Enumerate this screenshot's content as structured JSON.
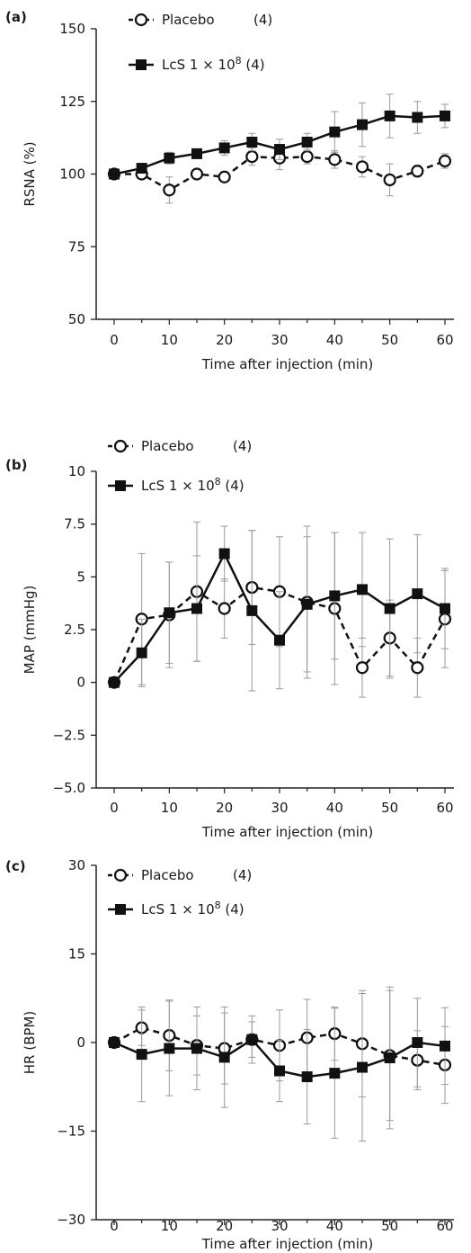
{
  "chart_data": [
    {
      "type": "line",
      "panel_label": "(a)",
      "xlabel": "Time after injection (min)",
      "ylabel": "RSNA (%)",
      "xlim": [
        0,
        60
      ],
      "ylim": [
        50,
        150
      ],
      "xticks": [
        "0",
        "10",
        "20",
        "30",
        "40",
        "50",
        "60"
      ],
      "yticks": [
        "50",
        "75",
        "100",
        "125",
        "150"
      ],
      "ytick_values": [
        50,
        75,
        100,
        125,
        150
      ],
      "legend": [
        {
          "marker": "open-circle",
          "line": "dashed",
          "label": "Placebo",
          "n": "(4)"
        },
        {
          "marker": "filled-square",
          "line": "solid",
          "label": "LcS 1 × 10",
          "sup": "8",
          "n": "(4)"
        }
      ],
      "series": [
        {
          "name": "Placebo",
          "marker": "open-circle",
          "line": "dashed",
          "x": [
            0,
            5,
            10,
            15,
            20,
            25,
            30,
            35,
            40,
            45,
            50,
            55,
            60
          ],
          "values": [
            100,
            100,
            94.5,
            100,
            99,
            106,
            105.5,
            106,
            105,
            102.5,
            98,
            101,
            104.5
          ],
          "errors": [
            1,
            1,
            4.5,
            1.5,
            1.5,
            3,
            4,
            2.5,
            3,
            3.5,
            5.5,
            2,
            2.5
          ]
        },
        {
          "name": "LcS 1 × 10^8",
          "marker": "filled-square",
          "line": "solid",
          "x": [
            0,
            5,
            10,
            15,
            20,
            25,
            30,
            35,
            40,
            45,
            50,
            55,
            60
          ],
          "values": [
            100,
            102,
            105.5,
            107,
            109,
            111,
            108.5,
            111,
            114.5,
            117,
            120,
            119.5,
            120
          ],
          "errors": [
            1,
            1.5,
            2,
            1.5,
            2.5,
            3,
            3.5,
            3,
            7,
            7.5,
            7.5,
            5.5,
            4
          ]
        }
      ]
    },
    {
      "type": "line",
      "panel_label": "(b)",
      "xlabel": "Time after injection (min)",
      "ylabel": "MAP (mmHg)",
      "xlim": [
        0,
        60
      ],
      "ylim": [
        -5,
        10
      ],
      "xticks": [
        "0",
        "10",
        "20",
        "30",
        "40",
        "50",
        "60"
      ],
      "yticks": [
        "−5.0",
        "−2.5",
        "0",
        "2.5",
        "5",
        "7.5",
        "10"
      ],
      "ytick_values": [
        -5,
        -2.5,
        0,
        2.5,
        5,
        7.5,
        10
      ],
      "legend": [
        {
          "marker": "open-circle",
          "line": "dashed",
          "label": "Placebo",
          "n": "(4)"
        },
        {
          "marker": "filled-square",
          "line": "solid",
          "label": "LcS 1 × 10",
          "sup": "8",
          "n": "(4)"
        }
      ],
      "series": [
        {
          "name": "Placebo",
          "marker": "open-circle",
          "line": "dashed",
          "x": [
            0,
            5,
            10,
            15,
            20,
            25,
            30,
            35,
            40,
            45,
            50,
            55,
            60
          ],
          "values": [
            0,
            3,
            3.2,
            4.3,
            3.5,
            4.5,
            4.3,
            3.8,
            3.5,
            0.7,
            2.1,
            0.7,
            3
          ],
          "errors": [
            0.2,
            3.1,
            2.5,
            3.3,
            1.4,
            2.7,
            2.6,
            3.6,
            3.6,
            1.4,
            1.8,
            1.4,
            2.3
          ]
        },
        {
          "name": "LcS 1 × 10^8",
          "marker": "filled-square",
          "line": "solid",
          "x": [
            0,
            5,
            10,
            15,
            20,
            25,
            30,
            35,
            40,
            45,
            50,
            55,
            60
          ],
          "values": [
            0,
            1.4,
            3.3,
            3.5,
            6.1,
            3.4,
            2,
            3.7,
            4.1,
            4.4,
            3.5,
            4.2,
            3.5
          ],
          "errors": [
            0.2,
            1.6,
            2.4,
            2.5,
            1.3,
            3.8,
            2.3,
            3.2,
            3,
            2.7,
            3.3,
            2.8,
            1.9
          ]
        }
      ]
    },
    {
      "type": "line",
      "panel_label": "(c)",
      "xlabel": "Time after injection (min)",
      "ylabel": "HR (BPM)",
      "xlim": [
        0,
        60
      ],
      "ylim": [
        -30,
        30
      ],
      "xticks": [
        "0",
        "10",
        "20",
        "30",
        "40",
        "50",
        "60"
      ],
      "yticks": [
        "−30",
        "−15",
        "0",
        "15",
        "30"
      ],
      "ytick_values": [
        -30,
        -15,
        0,
        15,
        30
      ],
      "legend": [
        {
          "marker": "open-circle",
          "line": "dashed",
          "label": "Placebo",
          "n": "(4)"
        },
        {
          "marker": "filled-square",
          "line": "solid",
          "label": "LcS 1 × 10",
          "sup": "8",
          "n": "(4)"
        }
      ],
      "series": [
        {
          "name": "Placebo",
          "marker": "open-circle",
          "line": "dashed",
          "x": [
            0,
            5,
            10,
            15,
            20,
            25,
            30,
            35,
            40,
            45,
            50,
            55,
            60
          ],
          "values": [
            0,
            2.5,
            1.2,
            -0.5,
            -1,
            0.5,
            -0.5,
            0.8,
            1.5,
            -0.2,
            -2.2,
            -3,
            -3.8
          ],
          "errors": [
            0.5,
            3,
            6,
            5,
            6,
            3,
            6,
            6.5,
            4.5,
            9,
            11,
            5,
            6.5
          ]
        },
        {
          "name": "LcS 1 × 10^8",
          "marker": "filled-square",
          "line": "solid",
          "x": [
            0,
            5,
            10,
            15,
            20,
            25,
            30,
            35,
            40,
            45,
            50,
            55,
            60
          ],
          "values": [
            0,
            -2,
            -1,
            -1,
            -2.5,
            0.5,
            -4.8,
            -5.8,
            -5.2,
            -4.2,
            -2.6,
            0,
            -0.6
          ],
          "errors": [
            0.5,
            8,
            8,
            7,
            8.5,
            4,
            5.2,
            8,
            11,
            12.5,
            12,
            7.5,
            6.5
          ]
        }
      ]
    }
  ]
}
